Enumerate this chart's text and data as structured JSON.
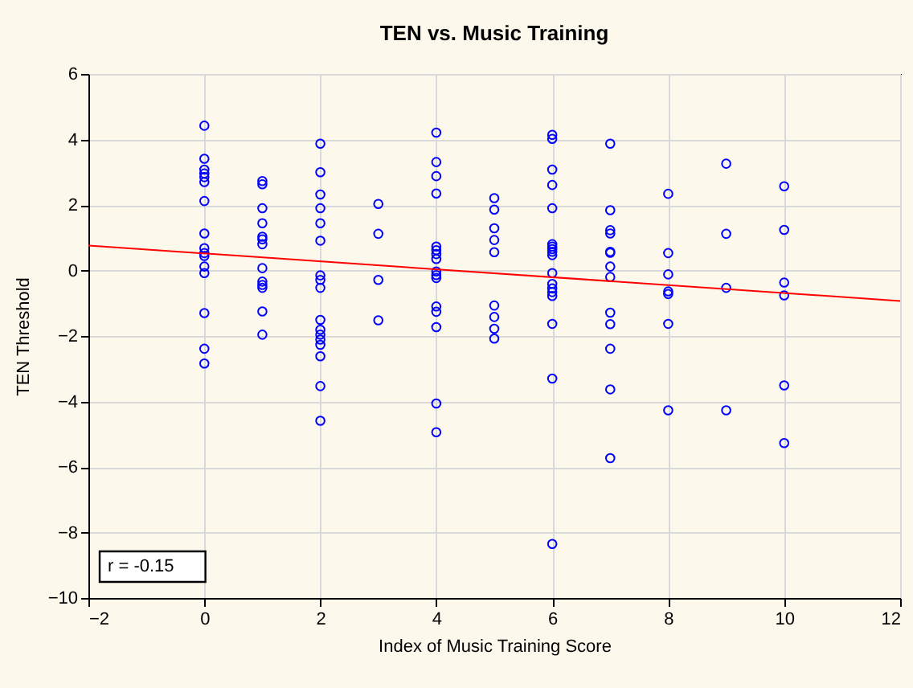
{
  "chart_data": {
    "type": "scatter",
    "title": "TEN vs. Music Training",
    "xlabel": "Index of Music Training Score",
    "ylabel": "TEN Threshold",
    "xlim": [
      -2,
      12
    ],
    "ylim": [
      -10,
      6
    ],
    "xticks": [
      -2,
      0,
      2,
      4,
      6,
      8,
      10,
      12
    ],
    "yticks": [
      -10,
      -8,
      -6,
      -4,
      -2,
      0,
      2,
      4,
      6
    ],
    "grid": true,
    "annotations": [
      "r = -0.15"
    ],
    "series": [
      {
        "marker": "circle",
        "color": "#0000ff",
        "x": [
          0,
          0,
          0,
          0,
          0,
          0,
          0,
          0,
          0,
          0,
          0,
          0,
          0,
          0,
          0,
          0,
          1,
          1,
          1,
          1,
          1,
          1,
          1,
          1,
          1,
          1,
          1,
          1,
          1,
          2,
          2,
          2,
          2,
          2,
          2,
          2,
          2,
          2,
          2,
          2,
          2,
          2,
          2,
          2,
          2,
          2,
          3,
          3,
          3,
          3,
          4,
          4,
          4,
          4,
          4,
          4,
          4,
          4,
          4,
          4,
          4,
          4,
          4,
          4,
          4,
          4,
          5,
          5,
          5,
          5,
          5,
          5,
          5,
          5,
          5,
          6,
          6,
          6,
          6,
          6,
          6,
          6,
          6,
          6,
          6,
          6,
          6,
          6,
          6,
          6,
          6,
          6,
          6,
          7,
          7,
          7,
          7,
          7,
          7,
          7,
          7,
          7,
          7,
          7,
          7,
          7,
          8,
          8,
          8,
          8,
          8,
          8,
          8,
          9,
          9,
          9,
          9,
          10,
          10,
          10,
          10,
          10,
          10
        ],
        "values": [
          4.42,
          3.41,
          3.08,
          2.96,
          2.85,
          2.7,
          2.12,
          1.13,
          0.68,
          0.53,
          0.44,
          0.12,
          -0.08,
          -1.3,
          -2.39,
          -2.84,
          2.73,
          2.63,
          1.9,
          1.44,
          1.03,
          0.95,
          0.8,
          0.07,
          -0.34,
          -0.44,
          -0.53,
          -1.25,
          -1.96,
          3.87,
          3.0,
          2.32,
          1.9,
          1.44,
          0.91,
          -0.15,
          -0.29,
          -0.53,
          -1.51,
          -1.81,
          -1.96,
          -2.11,
          -2.27,
          -2.62,
          -3.53,
          -4.59,
          2.03,
          1.12,
          -0.29,
          -1.52,
          4.21,
          3.31,
          2.88,
          2.35,
          0.73,
          0.62,
          0.5,
          0.35,
          -0.03,
          -0.14,
          -0.23,
          -1.1,
          -1.26,
          -1.73,
          -4.06,
          -4.94,
          2.21,
          1.86,
          1.29,
          0.93,
          0.56,
          -1.07,
          -1.42,
          -1.78,
          -2.08,
          4.14,
          4.02,
          3.08,
          2.61,
          1.9,
          0.8,
          0.73,
          0.65,
          0.57,
          0.47,
          -0.08,
          -0.41,
          -0.55,
          -0.66,
          -0.78,
          -1.63,
          -3.3,
          -8.35,
          3.87,
          1.84,
          1.23,
          1.13,
          0.57,
          0.54,
          0.12,
          -0.2,
          -1.29,
          -1.64,
          -2.39,
          -3.63,
          -5.73,
          2.34,
          0.53,
          -0.12,
          -0.64,
          -0.72,
          -1.63,
          -4.27,
          3.26,
          1.12,
          -0.53,
          -4.27,
          2.57,
          1.24,
          -0.37,
          -0.76,
          -3.51,
          -5.27
        ]
      },
      {
        "type": "line",
        "color": "#ff0000",
        "x": [
          -2,
          12
        ],
        "values": [
          0.76,
          -0.93
        ]
      }
    ]
  }
}
